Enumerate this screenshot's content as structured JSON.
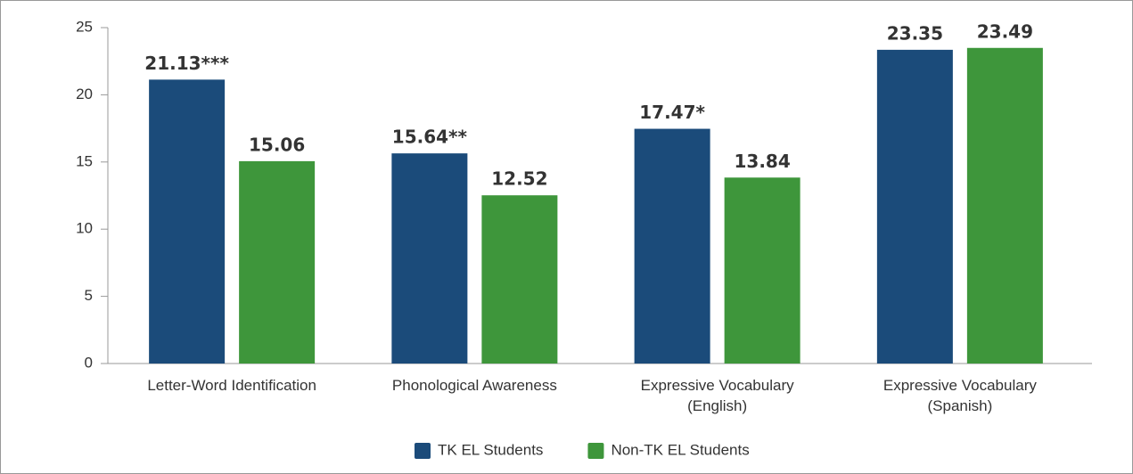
{
  "chart_data": {
    "type": "bar",
    "categories": [
      "Letter-Word Identification",
      "Phonological Awareness",
      "Expressive Vocabulary\n(English)",
      "Expressive Vocabulary\n(Spanish)"
    ],
    "series": [
      {
        "name": "TK EL Students",
        "color": "#1b4b7a",
        "values": [
          21.13,
          15.64,
          17.47,
          23.35
        ],
        "value_labels": [
          "21.13***",
          "15.64**",
          "17.47*",
          "23.35"
        ]
      },
      {
        "name": "Non-TK EL Students",
        "color": "#3e963b",
        "values": [
          15.06,
          12.52,
          13.84,
          23.49
        ]
      }
    ],
    "ylim": [
      0,
      25
    ],
    "yticks": [
      0,
      5,
      10,
      15,
      20,
      25
    ],
    "legend": "bottom"
  }
}
